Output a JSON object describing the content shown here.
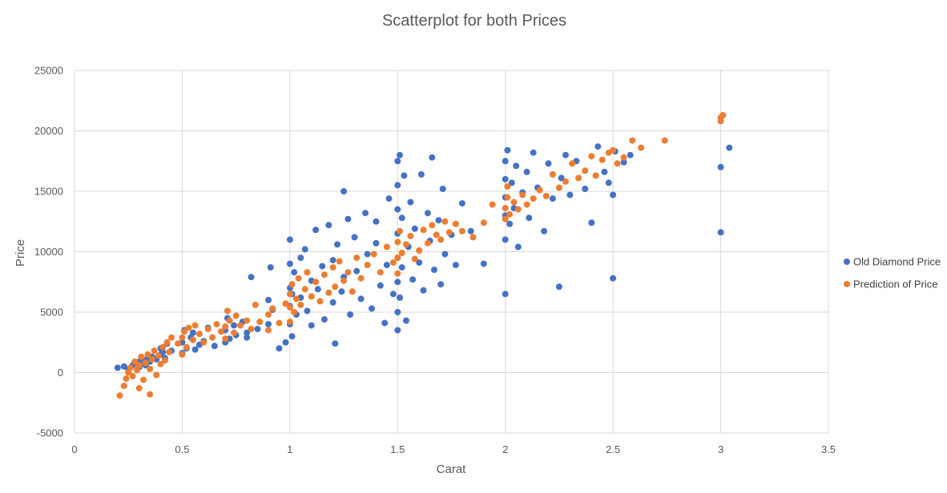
{
  "chart_data": {
    "type": "scatter",
    "title": "Scatterplot for both Prices",
    "xlabel": "Carat",
    "ylabel": "Price",
    "xlim": [
      0,
      3.5
    ],
    "ylim": [
      -5000,
      25000
    ],
    "x_ticks": [
      "0",
      "0.5",
      "1",
      "1.5",
      "2",
      "2.5",
      "3",
      "3.5"
    ],
    "y_ticks": [
      "-5000",
      "0",
      "5000",
      "10000",
      "15000",
      "20000",
      "25000"
    ],
    "grid": true,
    "legend_position": "right",
    "series": [
      {
        "name": "Old Diamond Price",
        "color": "#4472C4",
        "points": [
          [
            0.2,
            400
          ],
          [
            0.23,
            500
          ],
          [
            0.25,
            300
          ],
          [
            0.27,
            600
          ],
          [
            0.28,
            800
          ],
          [
            0.3,
            450
          ],
          [
            0.3,
            900
          ],
          [
            0.31,
            700
          ],
          [
            0.32,
            1000
          ],
          [
            0.33,
            600
          ],
          [
            0.34,
            1200
          ],
          [
            0.35,
            900
          ],
          [
            0.36,
            1300
          ],
          [
            0.38,
            1100
          ],
          [
            0.4,
            1500
          ],
          [
            0.4,
            2000
          ],
          [
            0.41,
            1700
          ],
          [
            0.42,
            1200
          ],
          [
            0.43,
            2400
          ],
          [
            0.45,
            1800
          ],
          [
            0.5,
            1600
          ],
          [
            0.5,
            2500
          ],
          [
            0.51,
            3500
          ],
          [
            0.52,
            2000
          ],
          [
            0.54,
            2900
          ],
          [
            0.55,
            3300
          ],
          [
            0.56,
            1900
          ],
          [
            0.58,
            2300
          ],
          [
            0.6,
            2600
          ],
          [
            0.62,
            3700
          ],
          [
            0.65,
            2200
          ],
          [
            0.7,
            2500
          ],
          [
            0.7,
            3500
          ],
          [
            0.71,
            4500
          ],
          [
            0.72,
            2800
          ],
          [
            0.74,
            3900
          ],
          [
            0.75,
            3100
          ],
          [
            0.78,
            4200
          ],
          [
            0.8,
            3300
          ],
          [
            0.8,
            2900
          ],
          [
            0.82,
            7900
          ],
          [
            0.85,
            3600
          ],
          [
            0.9,
            4000
          ],
          [
            0.9,
            6000
          ],
          [
            0.91,
            8700
          ],
          [
            0.92,
            5200
          ],
          [
            0.95,
            2000
          ],
          [
            0.98,
            2500
          ],
          [
            1.0,
            4000
          ],
          [
            1.0,
            5500
          ],
          [
            1.0,
            7000
          ],
          [
            1.0,
            9000
          ],
          [
            1.0,
            11000
          ],
          [
            1.01,
            3000
          ],
          [
            1.01,
            6500
          ],
          [
            1.02,
            8300
          ],
          [
            1.03,
            4800
          ],
          [
            1.05,
            9500
          ],
          [
            1.05,
            6200
          ],
          [
            1.07,
            10200
          ],
          [
            1.08,
            5100
          ],
          [
            1.1,
            7600
          ],
          [
            1.1,
            3900
          ],
          [
            1.12,
            11800
          ],
          [
            1.13,
            6900
          ],
          [
            1.15,
            8800
          ],
          [
            1.16,
            4400
          ],
          [
            1.18,
            12200
          ],
          [
            1.2,
            9300
          ],
          [
            1.2,
            5800
          ],
          [
            1.21,
            2400
          ],
          [
            1.22,
            10600
          ],
          [
            1.24,
            6700
          ],
          [
            1.25,
            7900
          ],
          [
            1.25,
            15000
          ],
          [
            1.27,
            12700
          ],
          [
            1.28,
            4800
          ],
          [
            1.3,
            11200
          ],
          [
            1.31,
            8400
          ],
          [
            1.33,
            6100
          ],
          [
            1.35,
            13200
          ],
          [
            1.36,
            9800
          ],
          [
            1.38,
            5300
          ],
          [
            1.4,
            10700
          ],
          [
            1.4,
            12500
          ],
          [
            1.42,
            7200
          ],
          [
            1.44,
            4100
          ],
          [
            1.45,
            8900
          ],
          [
            1.46,
            14400
          ],
          [
            1.48,
            6500
          ],
          [
            1.5,
            3500
          ],
          [
            1.5,
            5000
          ],
          [
            1.5,
            7500
          ],
          [
            1.5,
            9500
          ],
          [
            1.5,
            11500
          ],
          [
            1.5,
            13500
          ],
          [
            1.5,
            15500
          ],
          [
            1.5,
            17500
          ],
          [
            1.51,
            18000
          ],
          [
            1.51,
            6200
          ],
          [
            1.52,
            8700
          ],
          [
            1.52,
            12800
          ],
          [
            1.53,
            16300
          ],
          [
            1.54,
            4300
          ],
          [
            1.55,
            10400
          ],
          [
            1.56,
            14100
          ],
          [
            1.57,
            7700
          ],
          [
            1.58,
            11900
          ],
          [
            1.6,
            9100
          ],
          [
            1.61,
            16400
          ],
          [
            1.62,
            6800
          ],
          [
            1.64,
            13200
          ],
          [
            1.65,
            10900
          ],
          [
            1.66,
            17800
          ],
          [
            1.67,
            8500
          ],
          [
            1.69,
            12600
          ],
          [
            1.7,
            7300
          ],
          [
            1.71,
            15200
          ],
          [
            1.72,
            9800
          ],
          [
            1.75,
            11400
          ],
          [
            1.77,
            8900
          ],
          [
            1.8,
            14000
          ],
          [
            1.84,
            11700
          ],
          [
            1.9,
            9000
          ],
          [
            2.0,
            6500
          ],
          [
            2.0,
            11000
          ],
          [
            2.0,
            13000
          ],
          [
            2.0,
            14500
          ],
          [
            2.0,
            16000
          ],
          [
            2.0,
            17500
          ],
          [
            2.01,
            18400
          ],
          [
            2.02,
            12300
          ],
          [
            2.03,
            15700
          ],
          [
            2.04,
            13600
          ],
          [
            2.05,
            17100
          ],
          [
            2.06,
            10400
          ],
          [
            2.08,
            14900
          ],
          [
            2.1,
            16600
          ],
          [
            2.11,
            12800
          ],
          [
            2.13,
            18200
          ],
          [
            2.15,
            15300
          ],
          [
            2.18,
            11700
          ],
          [
            2.2,
            17300
          ],
          [
            2.22,
            14400
          ],
          [
            2.25,
            7100
          ],
          [
            2.26,
            16100
          ],
          [
            2.28,
            18000
          ],
          [
            2.3,
            14700
          ],
          [
            2.33,
            17500
          ],
          [
            2.37,
            15200
          ],
          [
            2.4,
            12400
          ],
          [
            2.43,
            18700
          ],
          [
            2.46,
            16600
          ],
          [
            2.48,
            15700
          ],
          [
            2.5,
            14700
          ],
          [
            2.5,
            7800
          ],
          [
            2.51,
            18300
          ],
          [
            2.55,
            17400
          ],
          [
            2.58,
            18000
          ],
          [
            3.0,
            17000
          ],
          [
            3.0,
            11600
          ],
          [
            3.04,
            18600
          ]
        ]
      },
      {
        "name": "Prediction of Price",
        "color": "#ED7D31",
        "points": [
          [
            0.21,
            -1900
          ],
          [
            0.23,
            -1100
          ],
          [
            0.24,
            -500
          ],
          [
            0.25,
            0
          ],
          [
            0.26,
            400
          ],
          [
            0.27,
            -300
          ],
          [
            0.28,
            900
          ],
          [
            0.29,
            200
          ],
          [
            0.3,
            -1300
          ],
          [
            0.3,
            600
          ],
          [
            0.31,
            1300
          ],
          [
            0.32,
            -600
          ],
          [
            0.33,
            800
          ],
          [
            0.34,
            1500
          ],
          [
            0.35,
            -1800
          ],
          [
            0.35,
            300
          ],
          [
            0.36,
            1100
          ],
          [
            0.37,
            1800
          ],
          [
            0.38,
            -200
          ],
          [
            0.39,
            1400
          ],
          [
            0.4,
            700
          ],
          [
            0.41,
            2100
          ],
          [
            0.42,
            1000
          ],
          [
            0.43,
            2500
          ],
          [
            0.44,
            1700
          ],
          [
            0.45,
            2900
          ],
          [
            0.48,
            2400
          ],
          [
            0.5,
            1500
          ],
          [
            0.5,
            2900
          ],
          [
            0.51,
            3400
          ],
          [
            0.52,
            2100
          ],
          [
            0.53,
            3700
          ],
          [
            0.55,
            2700
          ],
          [
            0.56,
            3900
          ],
          [
            0.58,
            3200
          ],
          [
            0.6,
            2500
          ],
          [
            0.62,
            3600
          ],
          [
            0.64,
            2900
          ],
          [
            0.66,
            4000
          ],
          [
            0.68,
            3400
          ],
          [
            0.7,
            2800
          ],
          [
            0.7,
            3800
          ],
          [
            0.71,
            5100
          ],
          [
            0.72,
            4300
          ],
          [
            0.74,
            3300
          ],
          [
            0.75,
            4700
          ],
          [
            0.77,
            3900
          ],
          [
            0.8,
            4300
          ],
          [
            0.82,
            3600
          ],
          [
            0.84,
            5600
          ],
          [
            0.86,
            4200
          ],
          [
            0.9,
            4800
          ],
          [
            0.9,
            3500
          ],
          [
            0.92,
            5300
          ],
          [
            0.95,
            4100
          ],
          [
            0.98,
            5700
          ],
          [
            1.0,
            4200
          ],
          [
            1.0,
            5400
          ],
          [
            1.0,
            6500
          ],
          [
            1.01,
            7300
          ],
          [
            1.02,
            5000
          ],
          [
            1.03,
            6100
          ],
          [
            1.04,
            7800
          ],
          [
            1.05,
            5600
          ],
          [
            1.07,
            6900
          ],
          [
            1.08,
            8300
          ],
          [
            1.1,
            6300
          ],
          [
            1.12,
            7500
          ],
          [
            1.14,
            5900
          ],
          [
            1.16,
            8100
          ],
          [
            1.18,
            6600
          ],
          [
            1.2,
            8700
          ],
          [
            1.21,
            7100
          ],
          [
            1.23,
            9200
          ],
          [
            1.25,
            7600
          ],
          [
            1.27,
            8300
          ],
          [
            1.29,
            6700
          ],
          [
            1.31,
            9500
          ],
          [
            1.33,
            7800
          ],
          [
            1.36,
            8900
          ],
          [
            1.39,
            9800
          ],
          [
            1.42,
            8300
          ],
          [
            1.45,
            10400
          ],
          [
            1.48,
            9100
          ],
          [
            1.5,
            8200
          ],
          [
            1.5,
            9500
          ],
          [
            1.5,
            10800
          ],
          [
            1.51,
            11700
          ],
          [
            1.52,
            9900
          ],
          [
            1.54,
            10600
          ],
          [
            1.56,
            11300
          ],
          [
            1.58,
            9400
          ],
          [
            1.6,
            10100
          ],
          [
            1.62,
            11800
          ],
          [
            1.64,
            10700
          ],
          [
            1.66,
            12200
          ],
          [
            1.68,
            11400
          ],
          [
            1.7,
            11000
          ],
          [
            1.72,
            12500
          ],
          [
            1.74,
            11600
          ],
          [
            1.77,
            12300
          ],
          [
            1.8,
            11700
          ],
          [
            1.85,
            11200
          ],
          [
            1.9,
            12400
          ],
          [
            1.94,
            13900
          ],
          [
            2.0,
            12700
          ],
          [
            2.0,
            13600
          ],
          [
            2.01,
            14500
          ],
          [
            2.01,
            15400
          ],
          [
            2.02,
            13100
          ],
          [
            2.04,
            14100
          ],
          [
            2.06,
            13500
          ],
          [
            2.08,
            14700
          ],
          [
            2.1,
            13900
          ],
          [
            2.13,
            14400
          ],
          [
            2.16,
            15100
          ],
          [
            2.19,
            14600
          ],
          [
            2.22,
            16400
          ],
          [
            2.25,
            15300
          ],
          [
            2.28,
            15800
          ],
          [
            2.31,
            17300
          ],
          [
            2.34,
            16100
          ],
          [
            2.37,
            16700
          ],
          [
            2.4,
            17900
          ],
          [
            2.42,
            16300
          ],
          [
            2.45,
            17600
          ],
          [
            2.48,
            18200
          ],
          [
            2.5,
            18400
          ],
          [
            2.52,
            17300
          ],
          [
            2.55,
            17800
          ],
          [
            2.59,
            19200
          ],
          [
            2.63,
            18600
          ],
          [
            2.74,
            19200
          ],
          [
            3.0,
            20800
          ],
          [
            3.0,
            21100
          ],
          [
            3.01,
            21300
          ]
        ]
      }
    ]
  }
}
